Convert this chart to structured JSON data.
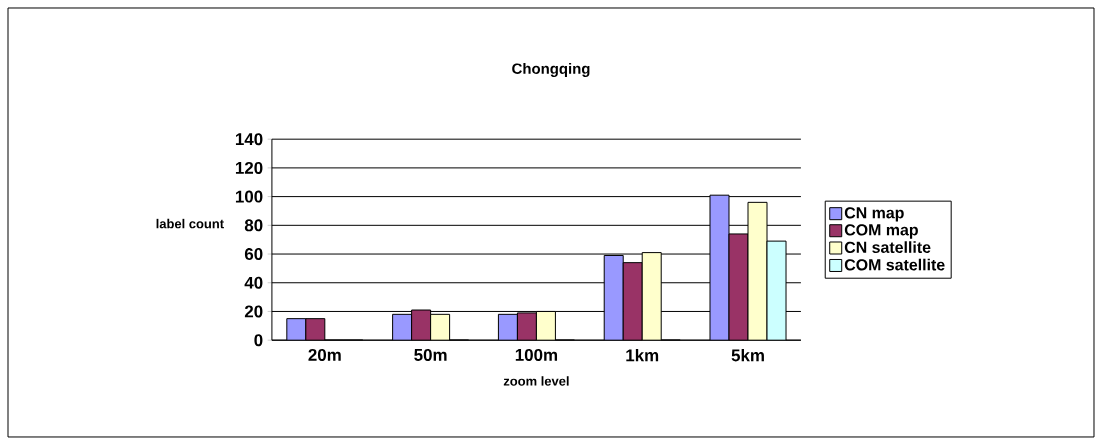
{
  "chart_data": {
    "type": "bar",
    "title": "Chongqing",
    "xlabel": "zoom level",
    "ylabel": "label count",
    "categories": [
      "20m",
      "50m",
      "100m",
      "1km",
      "5km"
    ],
    "series": [
      {
        "name": "CN map",
        "color": "#9999ff",
        "values": [
          15,
          18,
          18,
          59,
          101
        ]
      },
      {
        "name": "COM map",
        "color": "#993366",
        "values": [
          15,
          21,
          19,
          54,
          74
        ]
      },
      {
        "name": "CN satellite",
        "color": "#ffffcc",
        "values": [
          0,
          18,
          20,
          61,
          96
        ]
      },
      {
        "name": "COM satellite",
        "color": "#ccffff",
        "values": [
          0,
          0,
          0,
          0,
          69
        ]
      }
    ],
    "ylim": [
      0,
      140
    ],
    "yticks": [
      0,
      20,
      40,
      60,
      80,
      100,
      120,
      140
    ],
    "grid": "y",
    "legend": "right"
  }
}
